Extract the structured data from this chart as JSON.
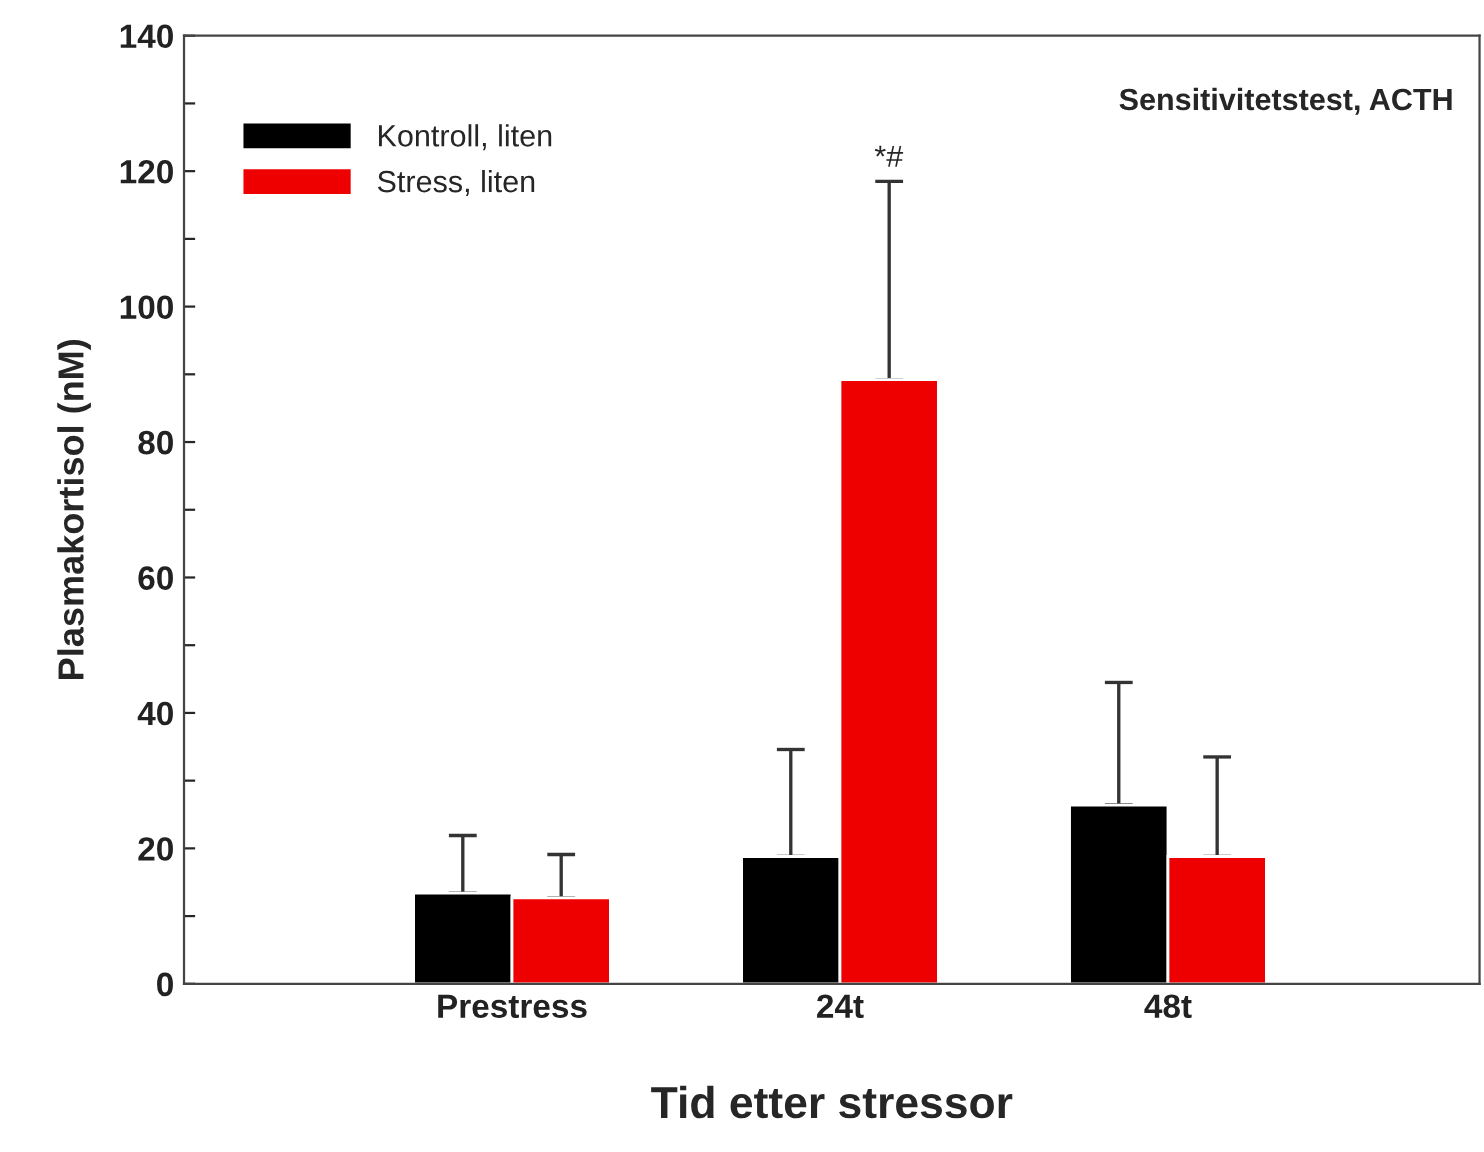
{
  "chart_data": {
    "type": "bar",
    "xlabel": "Tid etter stressor",
    "ylabel": "Plasmakortisol (nM)",
    "categories": [
      "Prestress",
      "24t",
      "48t"
    ],
    "series": [
      {
        "name": "Kontroll, liten",
        "color": "#000000",
        "values": [
          13.4,
          18.8,
          26.4
        ],
        "errors": [
          [
            13.4,
            21.9
          ],
          [
            18.8,
            34.6
          ],
          [
            26.4,
            44.5
          ]
        ]
      },
      {
        "name": "Stress, liten",
        "color": "#ee0000",
        "values": [
          12.7,
          89.2,
          18.8
        ],
        "errors": [
          [
            12.7,
            19.1
          ],
          [
            89.2,
            118.5
          ],
          [
            18.8,
            33.5
          ]
        ]
      }
    ],
    "ylim": [
      0,
      140
    ],
    "yticks": [
      0,
      {
        "value": 10,
        "label": null
      },
      20,
      {
        "value": 30,
        "label": null
      },
      40,
      {
        "value": 50,
        "label": null
      },
      60,
      {
        "value": 70,
        "label": null
      },
      80,
      {
        "value": 90,
        "label": null
      },
      100,
      {
        "value": 110,
        "label": null
      },
      120,
      {
        "value": 130,
        "label": null
      },
      140
    ],
    "annotations": [
      "Sensitivitetstest, ACTH",
      "*#"
    ],
    "legend": "top left",
    "grid": false
  }
}
